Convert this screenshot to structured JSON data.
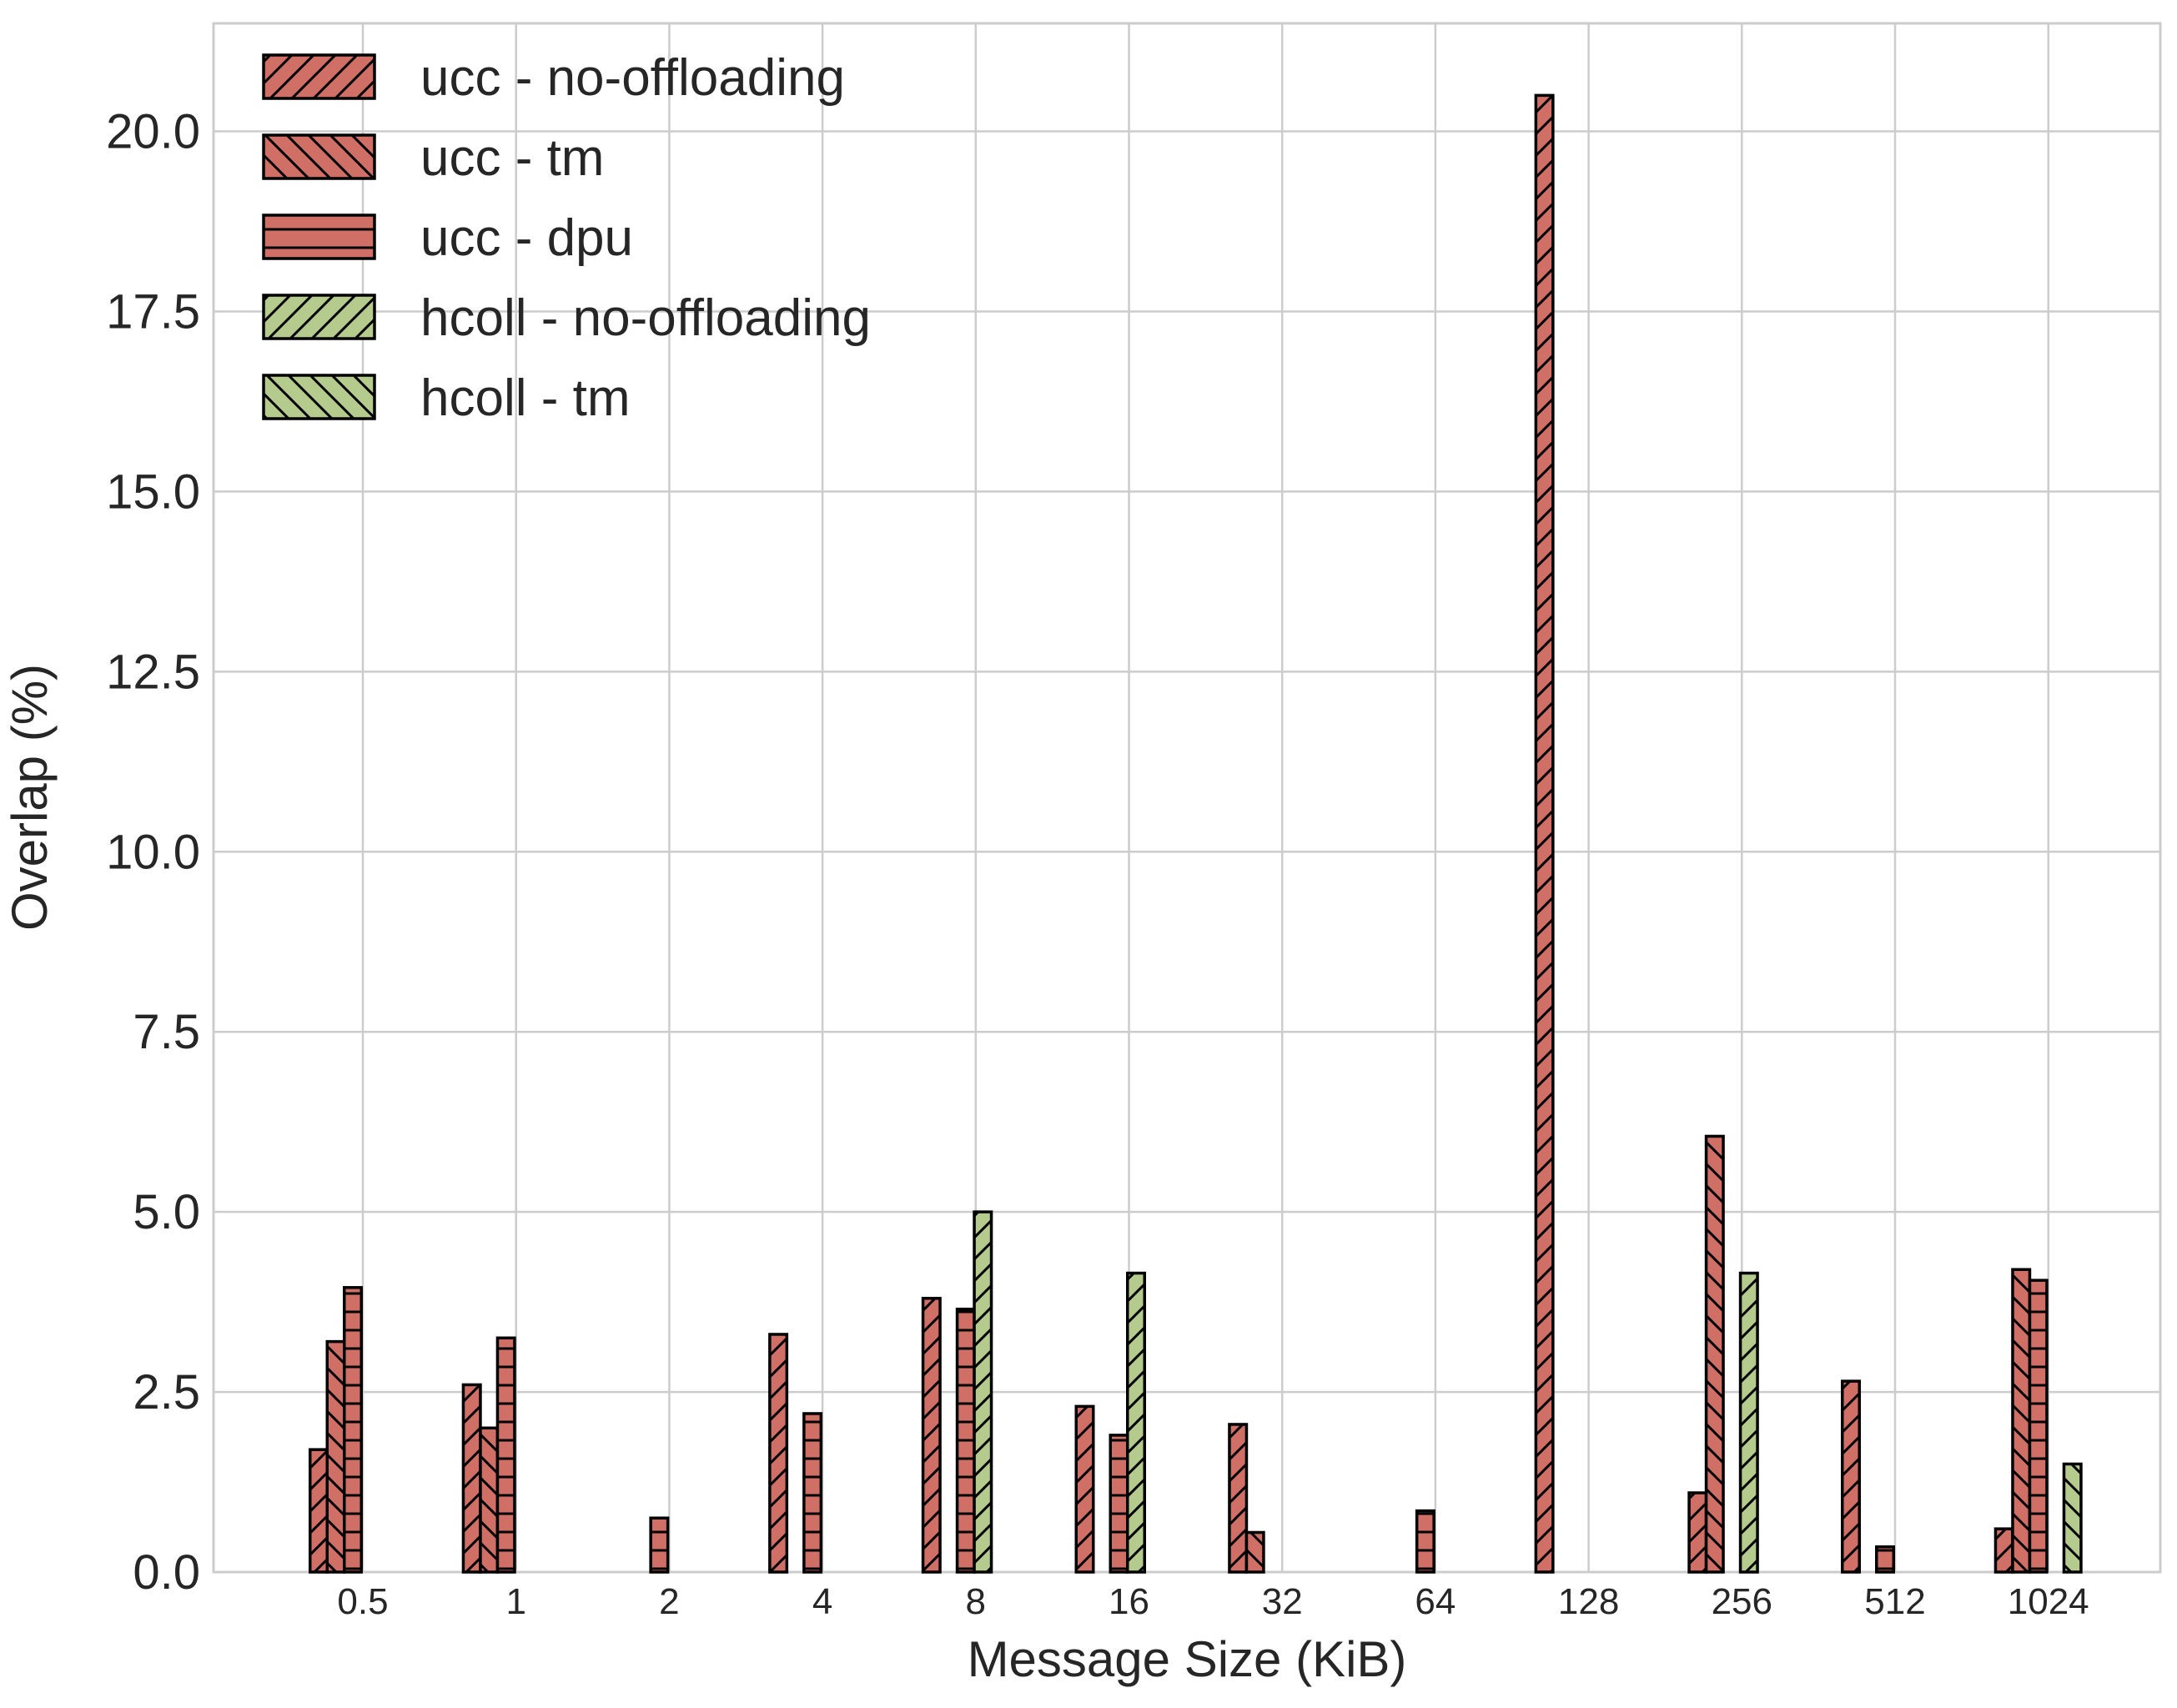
{
  "chart_data": {
    "type": "bar",
    "title": "",
    "xlabel": "Message Size (KiB)",
    "ylabel": "Overlap (%)",
    "categories": [
      "0.5",
      "1",
      "2",
      "4",
      "8",
      "16",
      "32",
      "64",
      "128",
      "256",
      "512",
      "1024"
    ],
    "ylim": [
      0,
      21.5
    ],
    "yticks": [
      "0.0",
      "2.5",
      "5.0",
      "7.5",
      "10.0",
      "12.5",
      "15.0",
      "17.5",
      "20.0"
    ],
    "grid": true,
    "legend_position": "top-left",
    "series": [
      {
        "name": "ucc - no-offloading",
        "color": "#cf6f66",
        "hatch": "forward",
        "values": [
          1.7,
          2.6,
          0.0,
          3.3,
          3.8,
          2.3,
          2.05,
          0.0,
          20.5,
          1.1,
          2.65,
          0.6
        ]
      },
      {
        "name": "ucc - tm",
        "color": "#cf6f66",
        "hatch": "backward",
        "values": [
          3.2,
          2.0,
          0.0,
          0.0,
          0.0,
          0.0,
          0.55,
          0.0,
          0.0,
          6.05,
          0.0,
          4.2
        ]
      },
      {
        "name": "ucc - dpu",
        "color": "#cf6f66",
        "hatch": "horizontal",
        "values": [
          3.95,
          3.25,
          0.75,
          2.2,
          3.65,
          1.9,
          0.0,
          0.85,
          0.0,
          0.0,
          0.35,
          4.05
        ]
      },
      {
        "name": "hcoll - no-offloading",
        "color": "#b5cb8e",
        "hatch": "forward",
        "values": [
          0.0,
          0.0,
          0.0,
          0.0,
          5.0,
          4.15,
          0.0,
          0.0,
          0.0,
          4.15,
          0.0,
          0.0
        ]
      },
      {
        "name": "hcoll - tm",
        "color": "#b5cb8e",
        "hatch": "backward",
        "values": [
          0.0,
          0.0,
          0.0,
          0.0,
          0.0,
          0.0,
          0.0,
          0.0,
          0.0,
          0.0,
          0.0,
          1.5
        ]
      }
    ]
  }
}
